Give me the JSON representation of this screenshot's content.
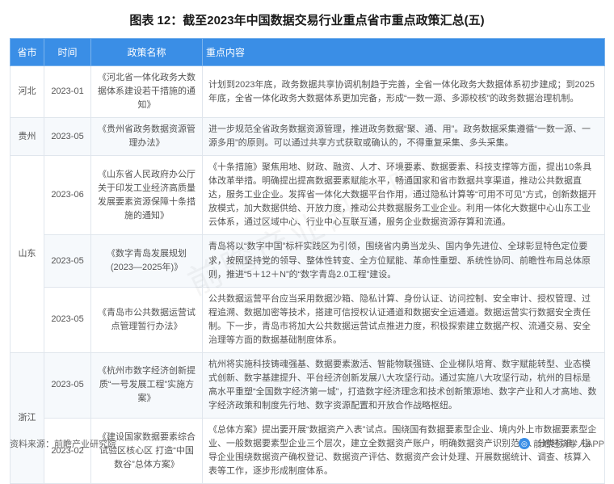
{
  "watermark_text": "前瞻产业研究院",
  "title": "图表 12：截至2023年中国数据交易行业重点省市重点政策汇总(五)",
  "columns": [
    "省市",
    "时间",
    "政策名称",
    "重点内容"
  ],
  "column_classes": [
    "col-prov",
    "col-time",
    "col-name",
    "col-content"
  ],
  "header_bg": "#3a8ee6",
  "header_fg": "#ffffff",
  "row_alt_bg": "#f6f9fc",
  "border_color": "#e0e6ed",
  "rows": [
    {
      "prov": "河北",
      "prov_rowspan": 1,
      "time": "2023-01",
      "name": "《河北省一体化政务大数据体系建设若干措施的通知》",
      "content": "计划到2023年底，政务数据共享协调机制趋于完善，全省一体化政务大数据体系初步建成；到2025年底，全省一体化政务大数据体系更加完备，形成“一数一源、多源校核”的政务数据治理机制。"
    },
    {
      "prov": "贵州",
      "prov_rowspan": 1,
      "time": "2023-05",
      "name": "《贵州省政务数据资源管理办法》",
      "content": "进一步规范全省政务数据资源管理，推进政务数据“聚、通、用”。政务数据采集遵循“一数一源、一源多用”的原则。可以通过共享方式获取或确认的，不得重复采集、多头采集。"
    },
    {
      "prov": "山东",
      "prov_rowspan": 3,
      "time": "2023-06",
      "name": "《山东省人民政府办公厅关于印发工业经济高质量发展要素资源保障十条措施的通知》",
      "content": "《十条措施》聚焦用地、财政、融资、人才、环境要素、数据要素、科技支撑等方面，提出10条具体改革举措。明确提出提高数据要素赋能水平，畅通国家和省市数据共享渠道，推动公共数据直达，服务工业企业。发挥省一体化大数据平台作用，通过隐私计算等“可用不可见”方式，创新数据开放模式，加大数据供给、开放力度，推动公共数据服务工业企业。利用一体化大数据中心山东工业云体系，通过区域中心、行业中心互联互通，服务企业数据资源存算和流通。"
    },
    {
      "prov": "",
      "prov_rowspan": 0,
      "time": "2023-05",
      "name": "《数字青岛发展规划(2023—2025年)》",
      "content": "青岛将以“数字中国”标杆实践区为引领，围绕省内勇当龙头、国内争先进位、全球彰显特色定位要求，按照坚持党的领导、整体性转变、全方位赋能、革命性重塑、系统性协同、前瞻性布局总体原则，推进“5＋12＋N”的“数字青岛2.0工程”建设。"
    },
    {
      "prov": "",
      "prov_rowspan": 0,
      "time": "2023-05",
      "name": "《青岛市公共数据运营试点管理暂行办法》",
      "content": "公共数据运营平台应当采用数据沙箱、隐私计算、身份认证、访问控制、安全审计、授权管理、过程追溯、数据加密等技术，搭建可信授权认证通道和数据安全运通道。数据运营实行数据安全责任制。下一步，青岛市将加大公共数据运营试点推进力度，积极探索建立数据产权、流通交易、安全治理等方面的数据基础制度体系。"
    },
    {
      "prov": "浙江",
      "prov_rowspan": 2,
      "time": "2023-05",
      "name": "《杭州市数字经济创新提质“一号发展工程”实施方案》",
      "content": "杭州将实施科技铸魂强基、数据要素激活、智能物联强链、企业梯队培育、数字赋能转型、业态模式创新、数字基建提升、平台经济创新发展八大攻坚行动。通过实施八大攻坚行动，杭州的目标是高水平重塑“全国数字经济第一城”，打造数字经济理念和技术创新策源地、数字产业和人才高地、数字经济政策和制度先行地、数字资源配置和开放合作战略枢纽。"
    },
    {
      "prov": "",
      "prov_rowspan": 0,
      "time": "2023-02",
      "name": "《建设国家数据要素综合试验区核心区 打造“中国数谷”总体方案》",
      "content": "《总体方案》提出要开展“数据资产入表”试点。围绕国有数据要素型企业、境内外上市数据要素型企业、一般数据要素型企业三个层次，建立全数据资产账户，明确数据资产识别范围、分类标准，指导企业围绕数据资产确权登记、数据资产评估、数据资产会计处理、开展数据统计、调查、核算入表等工作，逐步形成制度体系。"
    }
  ],
  "footer_source": "资料来源：前瞻产业研究院",
  "footer_app": "前瞻经济学人APP",
  "footer_icon": "◎"
}
